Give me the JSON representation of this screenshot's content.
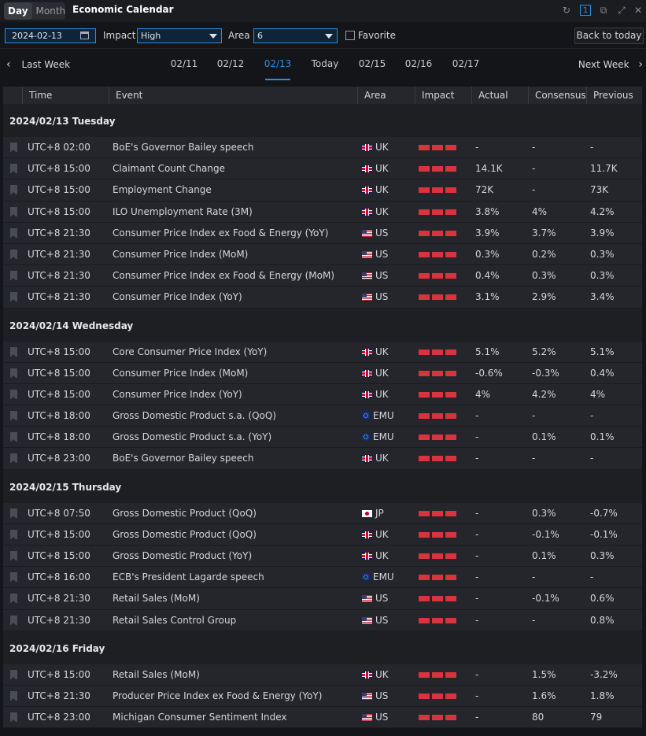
{
  "titlebar": {
    "seg_day": "Day",
    "seg_month": "Month",
    "title": "Economic Calendar",
    "badge": "1"
  },
  "filters": {
    "date": "2024-02-13",
    "impact_label": "Impact",
    "impact_value": "High",
    "area_label": "Area",
    "area_value": "6",
    "favorite_label": "Favorite",
    "back_label": "Back to today"
  },
  "weeknav": {
    "prev": "Last Week",
    "next": "Next Week",
    "days": [
      "02/11",
      "02/12",
      "02/13",
      "Today",
      "02/15",
      "02/16",
      "02/17"
    ],
    "active_index": 2
  },
  "columns": [
    "Time",
    "Event",
    "Area",
    "Impact",
    "Actual",
    "Consensus",
    "Previous"
  ],
  "colors": {
    "accent": "#2a8ee8",
    "impact_high": "#d8343d"
  },
  "sections": [
    {
      "title": "2024/02/13 Tuesday",
      "rows": [
        {
          "time": "UTC+8 02:00",
          "event": "BoE's Governor Bailey speech",
          "flag": "uk",
          "area": "UK",
          "actual": "-",
          "consensus": "-",
          "previous": "-"
        },
        {
          "time": "UTC+8 15:00",
          "event": "Claimant Count Change",
          "flag": "uk",
          "area": "UK",
          "actual": "14.1K",
          "consensus": "-",
          "previous": "11.7K"
        },
        {
          "time": "UTC+8 15:00",
          "event": "Employment Change",
          "flag": "uk",
          "area": "UK",
          "actual": "72K",
          "consensus": "-",
          "previous": "73K"
        },
        {
          "time": "UTC+8 15:00",
          "event": "ILO Unemployment Rate (3M)",
          "flag": "uk",
          "area": "UK",
          "actual": "3.8%",
          "consensus": "4%",
          "previous": "4.2%"
        },
        {
          "time": "UTC+8 21:30",
          "event": "Consumer Price Index ex Food & Energy (YoY)",
          "flag": "us",
          "area": "US",
          "actual": "3.9%",
          "consensus": "3.7%",
          "previous": "3.9%"
        },
        {
          "time": "UTC+8 21:30",
          "event": "Consumer Price Index (MoM)",
          "flag": "us",
          "area": "US",
          "actual": "0.3%",
          "consensus": "0.2%",
          "previous": "0.3%"
        },
        {
          "time": "UTC+8 21:30",
          "event": "Consumer Price Index ex Food & Energy (MoM)",
          "flag": "us",
          "area": "US",
          "actual": "0.4%",
          "consensus": "0.3%",
          "previous": "0.3%"
        },
        {
          "time": "UTC+8 21:30",
          "event": "Consumer Price Index (YoY)",
          "flag": "us",
          "area": "US",
          "actual": "3.1%",
          "consensus": "2.9%",
          "previous": "3.4%"
        }
      ]
    },
    {
      "title": "2024/02/14 Wednesday",
      "rows": [
        {
          "time": "UTC+8 15:00",
          "event": "Core Consumer Price Index (YoY)",
          "flag": "uk",
          "area": "UK",
          "actual": "5.1%",
          "consensus": "5.2%",
          "previous": "5.1%"
        },
        {
          "time": "UTC+8 15:00",
          "event": "Consumer Price Index (MoM)",
          "flag": "uk",
          "area": "UK",
          "actual": "-0.6%",
          "consensus": "-0.3%",
          "previous": "0.4%"
        },
        {
          "time": "UTC+8 15:00",
          "event": "Consumer Price Index (YoY)",
          "flag": "uk",
          "area": "UK",
          "actual": "4%",
          "consensus": "4.2%",
          "previous": "4%"
        },
        {
          "time": "UTC+8 18:00",
          "event": "Gross Domestic Product s.a. (QoQ)",
          "flag": "emu",
          "area": "EMU",
          "actual": "-",
          "consensus": "-",
          "previous": "-"
        },
        {
          "time": "UTC+8 18:00",
          "event": "Gross Domestic Product s.a. (YoY)",
          "flag": "emu",
          "area": "EMU",
          "actual": "-",
          "consensus": "0.1%",
          "previous": "0.1%"
        },
        {
          "time": "UTC+8 23:00",
          "event": "BoE's Governor Bailey speech",
          "flag": "uk",
          "area": "UK",
          "actual": "-",
          "consensus": "-",
          "previous": "-"
        }
      ]
    },
    {
      "title": "2024/02/15 Thursday",
      "rows": [
        {
          "time": "UTC+8 07:50",
          "event": "Gross Domestic Product (QoQ)",
          "flag": "jp",
          "area": "JP",
          "actual": "-",
          "consensus": "0.3%",
          "previous": "-0.7%"
        },
        {
          "time": "UTC+8 15:00",
          "event": "Gross Domestic Product (QoQ)",
          "flag": "uk",
          "area": "UK",
          "actual": "-",
          "consensus": "-0.1%",
          "previous": "-0.1%"
        },
        {
          "time": "UTC+8 15:00",
          "event": "Gross Domestic Product (YoY)",
          "flag": "uk",
          "area": "UK",
          "actual": "-",
          "consensus": "0.1%",
          "previous": "0.3%"
        },
        {
          "time": "UTC+8 16:00",
          "event": "ECB's President Lagarde speech",
          "flag": "emu",
          "area": "EMU",
          "actual": "-",
          "consensus": "-",
          "previous": "-"
        },
        {
          "time": "UTC+8 21:30",
          "event": "Retail Sales (MoM)",
          "flag": "us",
          "area": "US",
          "actual": "-",
          "consensus": "-0.1%",
          "previous": "0.6%"
        },
        {
          "time": "UTC+8 21:30",
          "event": "Retail Sales Control Group",
          "flag": "us",
          "area": "US",
          "actual": "-",
          "consensus": "-",
          "previous": "0.8%"
        }
      ]
    },
    {
      "title": "2024/02/16 Friday",
      "rows": [
        {
          "time": "UTC+8 15:00",
          "event": "Retail Sales (MoM)",
          "flag": "uk",
          "area": "UK",
          "actual": "-",
          "consensus": "1.5%",
          "previous": "-3.2%"
        },
        {
          "time": "UTC+8 21:30",
          "event": "Producer Price Index ex Food & Energy (YoY)",
          "flag": "us",
          "area": "US",
          "actual": "-",
          "consensus": "1.6%",
          "previous": "1.8%"
        },
        {
          "time": "UTC+8 23:00",
          "event": "Michigan Consumer Sentiment Index",
          "flag": "us",
          "area": "US",
          "actual": "-",
          "consensus": "80",
          "previous": "79"
        }
      ]
    }
  ]
}
